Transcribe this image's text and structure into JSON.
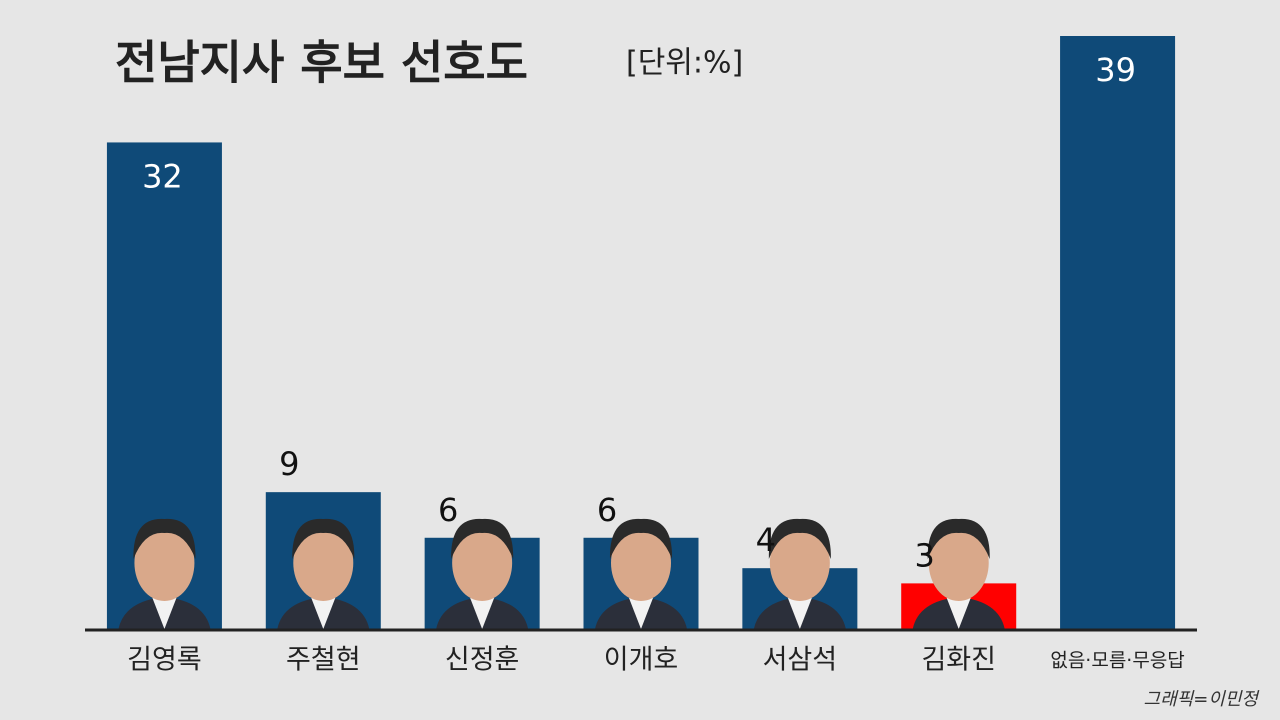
{
  "chart_data": {
    "type": "bar",
    "title": "전남지사 후보 선호도",
    "subtitle": "[단위:%]",
    "credit": "그래픽=이민정",
    "categories": [
      "김영록",
      "주철현",
      "신정훈",
      "이개호",
      "서삼석",
      "김화진",
      "없음·모름·무응답"
    ],
    "values": [
      32,
      9,
      6,
      6,
      4,
      3,
      39
    ],
    "colors": [
      "#0f4a78",
      "#0f4a78",
      "#0f4a78",
      "#0f4a78",
      "#0f4a78",
      "#ff0000",
      "#0f4a78"
    ]
  }
}
